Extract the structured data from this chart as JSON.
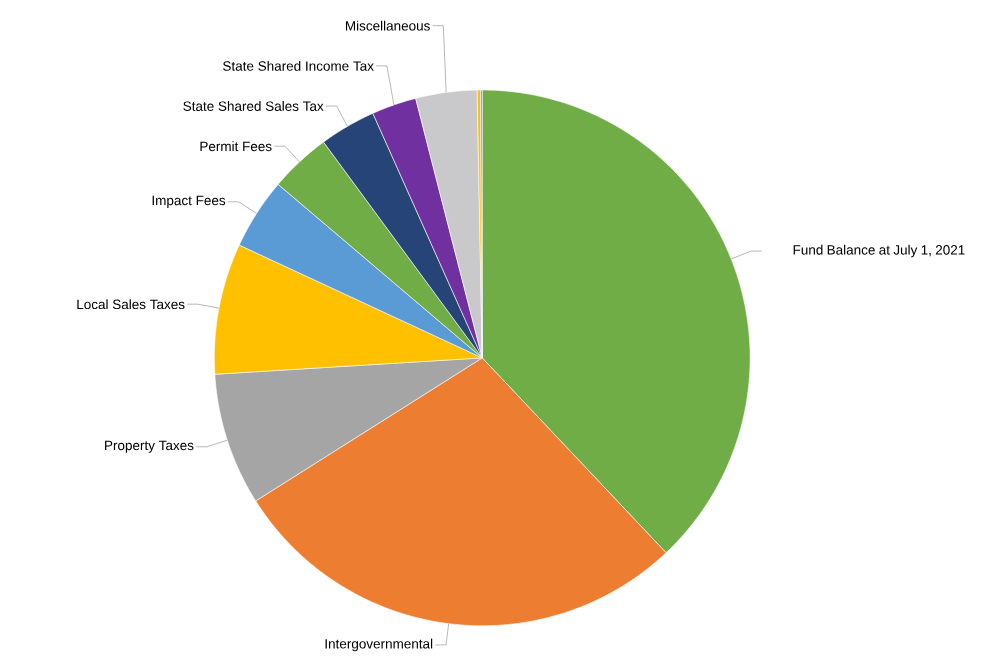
{
  "chart_data": {
    "type": "pie",
    "categories": [
      "Fund Balance at July 1, 2021",
      "Intergovernmental",
      "Property Taxes",
      "Local Sales Taxes",
      "Impact Fees",
      "Permit Fees",
      "State Shared Sales Tax",
      "State Shared Income Tax",
      "Miscellaneous",
      null,
      null
    ],
    "values": [
      38.0,
      28.1,
      8.0,
      7.9,
      4.3,
      3.7,
      3.4,
      2.7,
      3.7,
      0.2,
      0.1
    ],
    "colors": [
      "#70ad47",
      "#ed7d31",
      "#a5a5a5",
      "#ffc000",
      "#5b9bd5",
      "#70ad47",
      "#264478",
      "#7030a0",
      "#c9c9cb",
      "#ffc000",
      "#5b9bd5"
    ]
  }
}
